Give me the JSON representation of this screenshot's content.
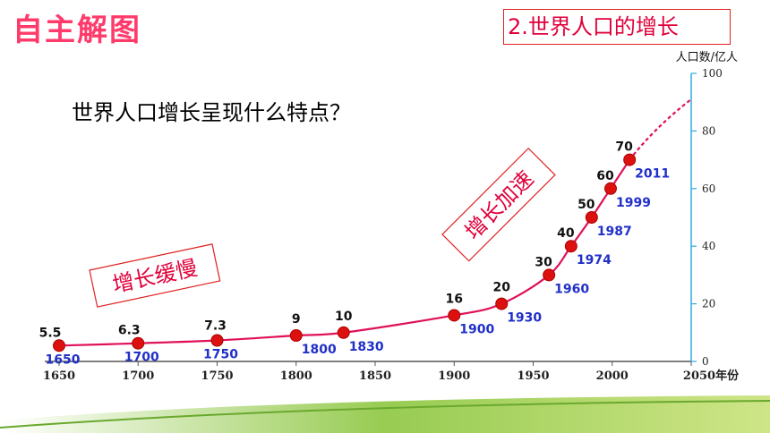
{
  "title": "自主解图",
  "topic_label": "2.世界人口的增长",
  "question": "世界人口增长呈现什么特点？",
  "annotations": {
    "slow": "增长缓慢",
    "fast": "增长加速"
  },
  "colors": {
    "line": "#e0105a",
    "point": "#dd1010",
    "year_label": "#2030c8",
    "title": "#ff3b6b",
    "axis": "#33aadd"
  },
  "chart_data": {
    "type": "line",
    "title": "",
    "xlabel": "年份",
    "ylabel": "人口数/亿人",
    "xlim": [
      1650,
      2050
    ],
    "ylim": [
      0,
      100
    ],
    "x_ticks": [
      "1650",
      "1700",
      "1750",
      "1800",
      "1850",
      "1900",
      "1950",
      "2000",
      "2050年份"
    ],
    "y_ticks": [
      "0",
      "20",
      "40",
      "60",
      "80",
      "100"
    ],
    "x": [
      1650,
      1700,
      1750,
      1800,
      1830,
      1900,
      1930,
      1960,
      1974,
      1987,
      1999,
      2011
    ],
    "y": [
      5.5,
      6.3,
      7.3,
      9,
      10,
      16,
      20,
      30,
      40,
      50,
      60,
      70
    ],
    "value_labels": [
      "5.5",
      "6.3",
      "7.3",
      "9",
      "10",
      "16",
      "20",
      "30",
      "40",
      "50",
      "60",
      "70"
    ],
    "year_labels": [
      "1650",
      "1700",
      "1750",
      "1800",
      "1830",
      "1900",
      "1930",
      "1960",
      "1974",
      "1987",
      "1999",
      "2011"
    ],
    "projection": {
      "x": [
        2011,
        2050
      ],
      "y": [
        70,
        91
      ],
      "style": "dashed"
    },
    "grid": false
  }
}
